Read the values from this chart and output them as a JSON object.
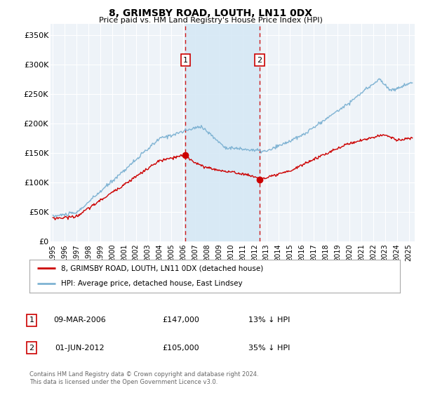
{
  "title": "8, GRIMSBY ROAD, LOUTH, LN11 0DX",
  "subtitle": "Price paid vs. HM Land Registry's House Price Index (HPI)",
  "ylabel_ticks": [
    "£0",
    "£50K",
    "£100K",
    "£150K",
    "£200K",
    "£250K",
    "£300K",
    "£350K"
  ],
  "ylim": [
    0,
    370000
  ],
  "xlim_start": 1994.8,
  "xlim_end": 2025.5,
  "transaction1_date": 2006.18,
  "transaction1_price": 147000,
  "transaction2_date": 2012.42,
  "transaction2_price": 105000,
  "shaded_region_start": 2006.18,
  "shaded_region_end": 2012.42,
  "line_color_property": "#cc0000",
  "line_color_hpi": "#7fb3d3",
  "legend_label_property": "8, GRIMSBY ROAD, LOUTH, LN11 0DX (detached house)",
  "legend_label_hpi": "HPI: Average price, detached house, East Lindsey",
  "footer_text": "Contains HM Land Registry data © Crown copyright and database right 2024.\nThis data is licensed under the Open Government Licence v3.0.",
  "info_row1": [
    "1",
    "09-MAR-2006",
    "£147,000",
    "13% ↓ HPI"
  ],
  "info_row2": [
    "2",
    "01-JUN-2012",
    "£105,000",
    "35% ↓ HPI"
  ],
  "background_color": "#ffffff",
  "plot_bg_color": "#eef3f8",
  "grid_color": "#ffffff",
  "marker1_y": 308000,
  "marker2_y": 308000
}
